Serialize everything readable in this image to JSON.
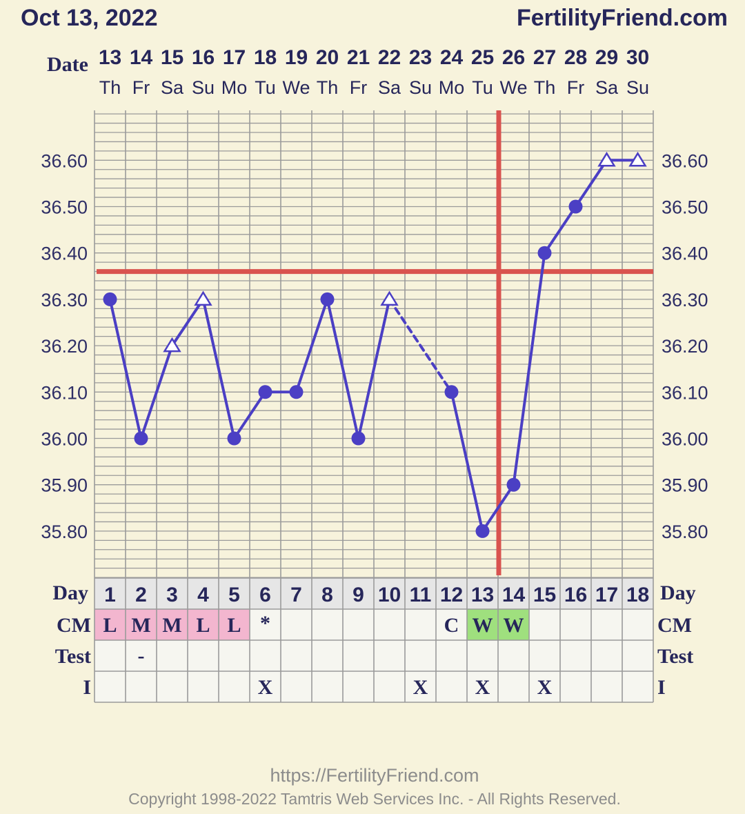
{
  "header": {
    "date": "Oct 13, 2022",
    "site": "FertilityFriend.com"
  },
  "footer": {
    "url": "https://FertilityFriend.com",
    "copyright": "Copyright 1998-2022 Tamtris Web Services Inc. - All Rights Reserved."
  },
  "colors": {
    "background": "#f7f3dc",
    "series": "#4b3fc4",
    "coverline": "#d9534f",
    "grid": "#9a9a9a",
    "cm_pink": "#f3b6cf",
    "cm_green": "#9fe07e",
    "day_header_bg": "#e6e6e6",
    "table_bg": "#f6f6f0"
  },
  "chart_data": {
    "type": "line",
    "row_labels": {
      "date": "Date",
      "day": "Day",
      "cm": "CM",
      "test": "Test",
      "i": "I"
    },
    "dates": [
      "13",
      "14",
      "15",
      "16",
      "17",
      "18",
      "19",
      "20",
      "21",
      "22",
      "23",
      "24",
      "25",
      "26",
      "27",
      "28",
      "29",
      "30"
    ],
    "weekdays": [
      "Th",
      "Fr",
      "Sa",
      "Su",
      "Mo",
      "Tu",
      "We",
      "Th",
      "Fr",
      "Sa",
      "Su",
      "Mo",
      "Tu",
      "We",
      "Th",
      "Fr",
      "Sa",
      "Su"
    ],
    "cycle_days": [
      "1",
      "2",
      "3",
      "4",
      "5",
      "6",
      "7",
      "8",
      "9",
      "10",
      "11",
      "12",
      "13",
      "14",
      "15",
      "16",
      "17",
      "18"
    ],
    "y_ticks": [
      "36.60",
      "36.50",
      "36.40",
      "36.30",
      "36.20",
      "36.10",
      "36.00",
      "35.90",
      "35.80"
    ],
    "ylim": [
      35.7,
      36.7
    ],
    "temperatures": [
      36.3,
      36.0,
      36.2,
      36.3,
      36.0,
      36.1,
      36.1,
      36.3,
      36.0,
      36.3,
      null,
      36.1,
      35.8,
      35.9,
      36.4,
      36.5,
      36.6,
      36.6
    ],
    "markers": [
      "circle",
      "circle",
      "triangle",
      "triangle",
      "circle",
      "circle",
      "circle",
      "circle",
      "circle",
      "triangle",
      null,
      "circle",
      "circle",
      "circle",
      "circle",
      "circle",
      "triangle",
      "triangle"
    ],
    "dashed_gap": {
      "from_day": 10,
      "to_day": 12
    },
    "coverline": 36.36,
    "ovulation_day": 14,
    "cm": [
      "L",
      "M",
      "M",
      "L",
      "L",
      "*",
      "",
      "",
      "",
      "",
      "",
      "C",
      "W",
      "W",
      "",
      "",
      "",
      ""
    ],
    "cm_fill": [
      "pink",
      "pink",
      "pink",
      "pink",
      "pink",
      "",
      "",
      "",
      "",
      "",
      "",
      "",
      "green",
      "green",
      "",
      "",
      "",
      ""
    ],
    "test": [
      "",
      "-",
      "",
      "",
      "",
      "",
      "",
      "",
      "",
      "",
      "",
      "",
      "",
      "",
      "",
      "",
      "",
      ""
    ],
    "intercourse": [
      "",
      "",
      "",
      "",
      "",
      "X",
      "",
      "",
      "",
      "",
      "X",
      "",
      "X",
      "",
      "X",
      "",
      "",
      ""
    ]
  }
}
